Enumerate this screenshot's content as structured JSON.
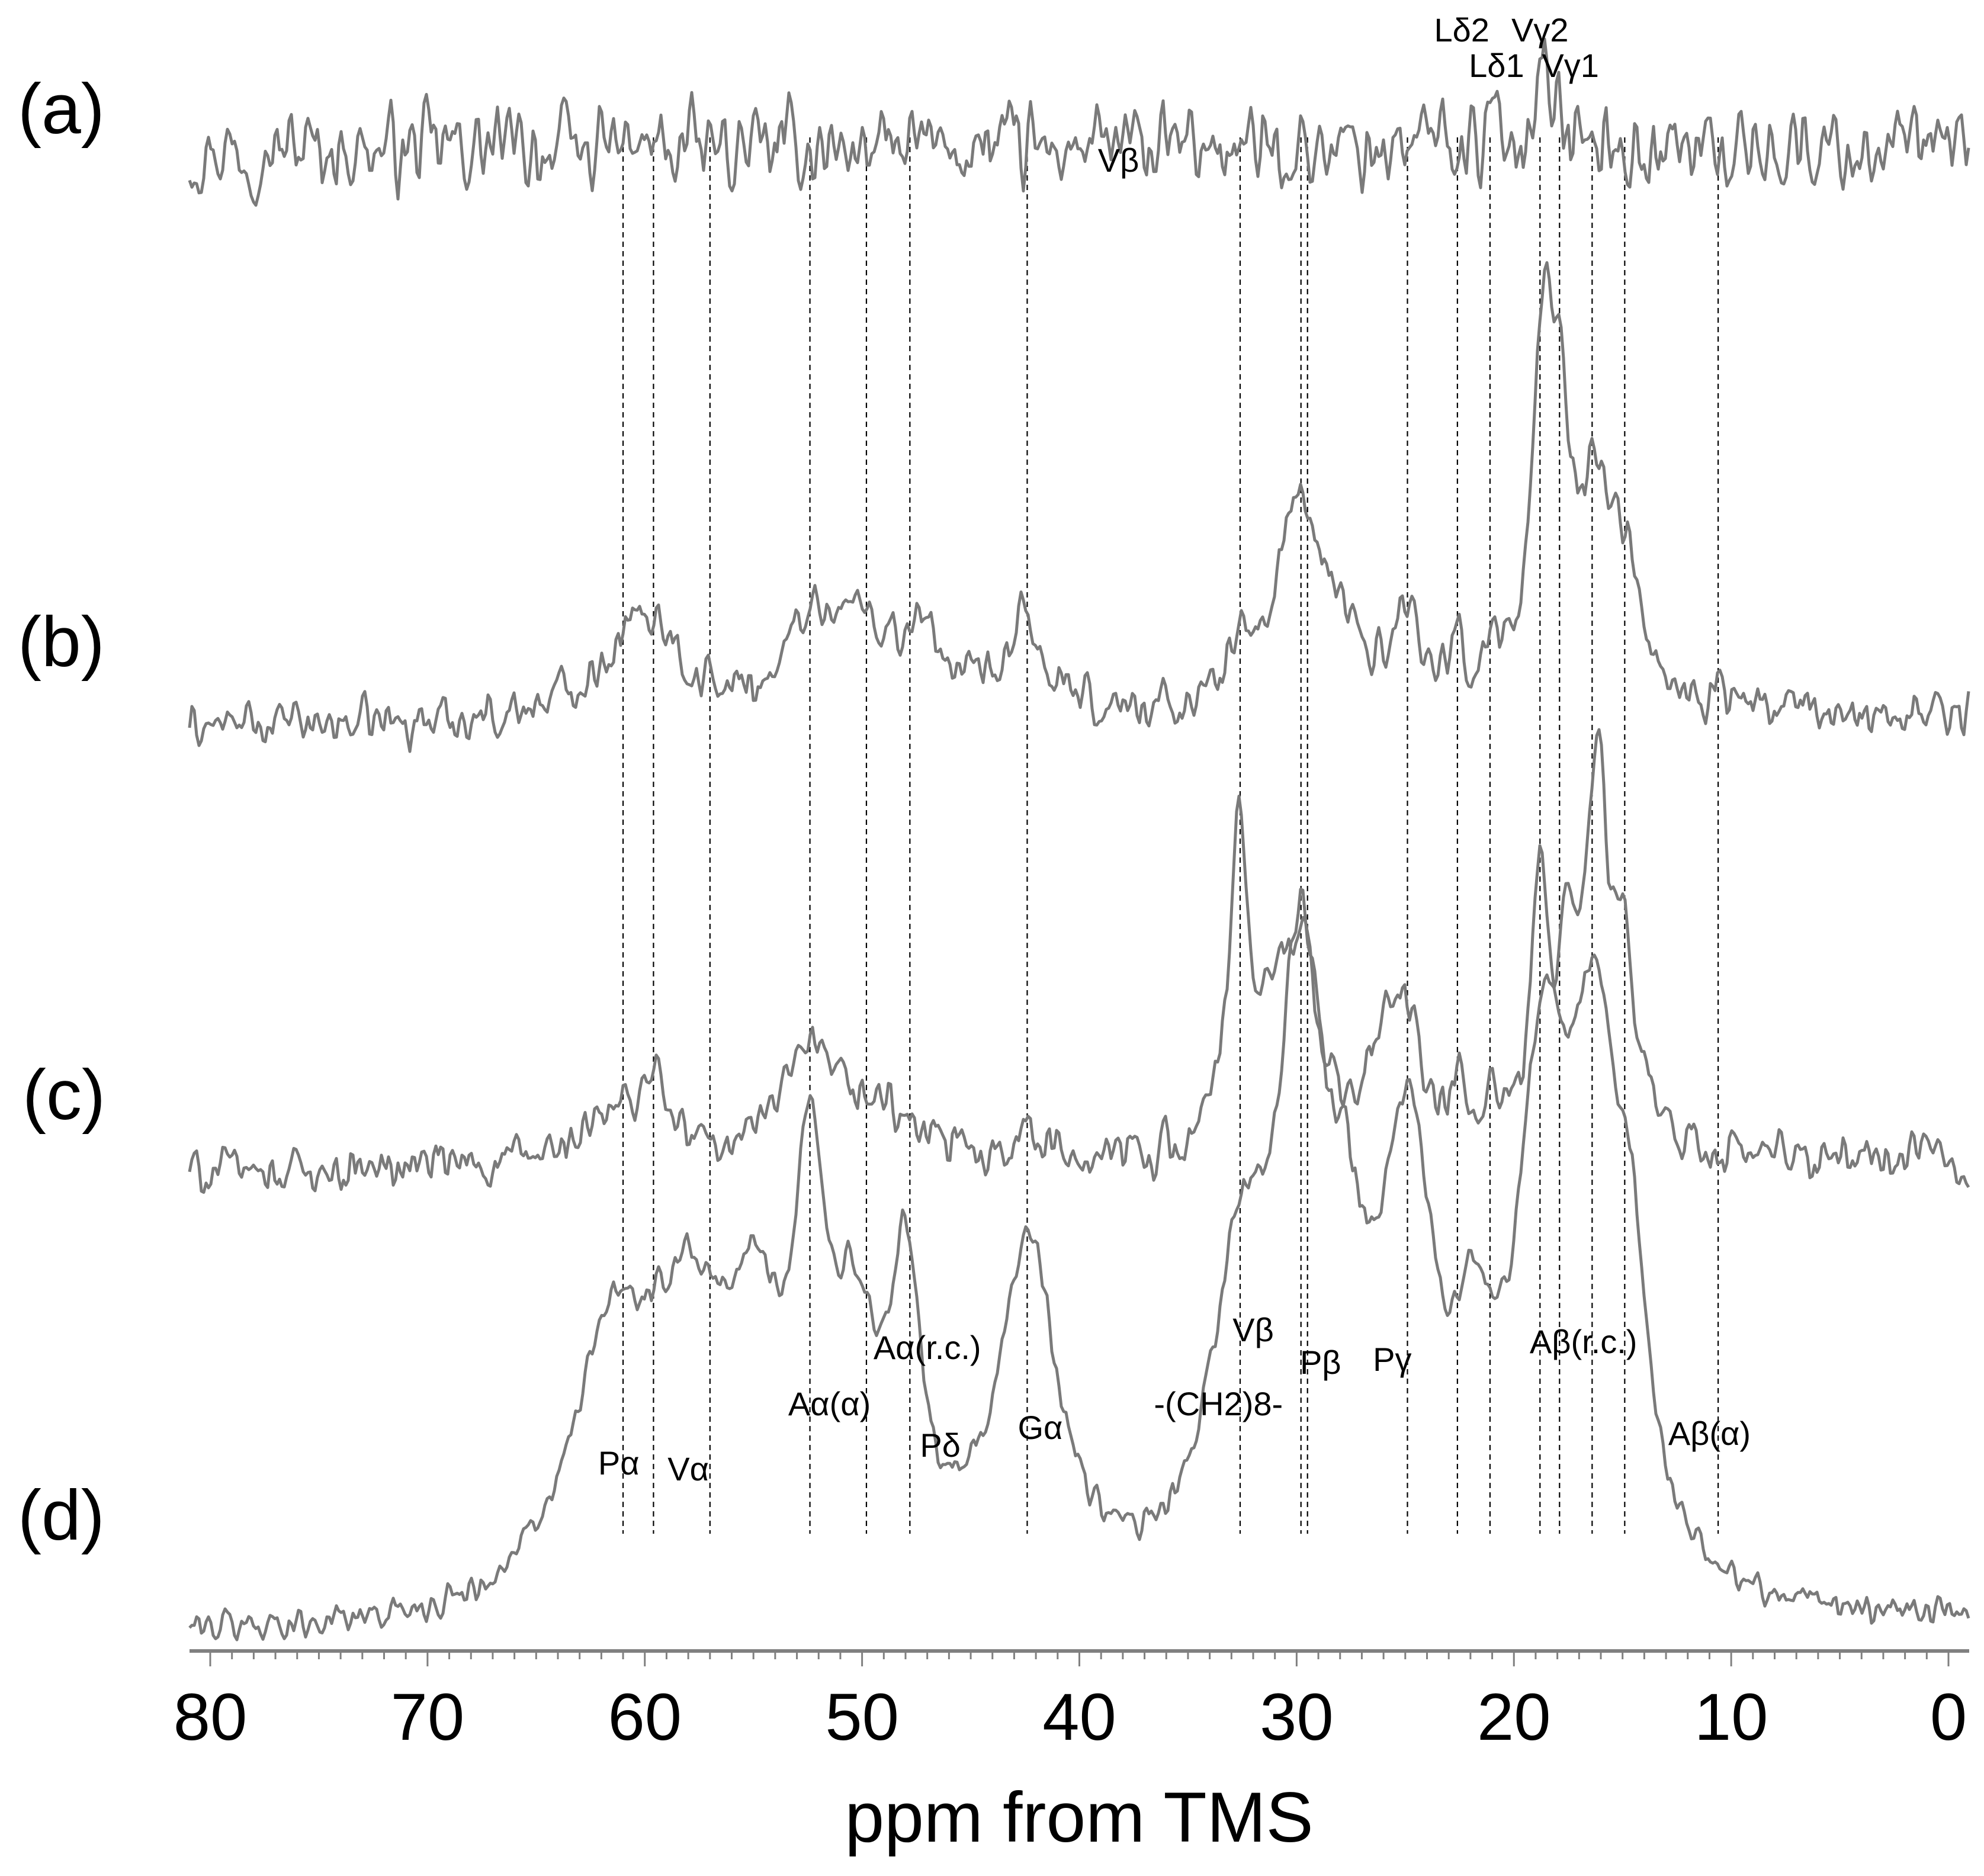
{
  "chart_data": {
    "type": "line",
    "xlabel": "ppm from TMS",
    "xlim": [
      80,
      0
    ],
    "x_reversed": true,
    "xticks": [
      80,
      70,
      60,
      50,
      40,
      30,
      20,
      10,
      0
    ],
    "minor_tick_step": 1,
    "guide_lines_ppm": [
      61.0,
      59.6,
      57.0,
      52.4,
      49.8,
      47.8,
      42.4,
      32.6,
      29.8,
      29.5,
      24.9,
      22.6,
      21.1,
      18.8,
      17.9,
      16.4,
      14.9,
      10.6
    ],
    "series": [
      {
        "name": "(a)",
        "baseline": 0,
        "noise": 0.9,
        "peaks": [
          [
            18.6,
            3.3,
            0.45
          ],
          [
            23.5,
            1.2,
            0.2
          ],
          [
            21.0,
            1.0,
            0.2
          ]
        ],
        "labels": [
          {
            "text": "Lδ2",
            "ppm": 22.4
          },
          {
            "text": "Lδ1",
            "ppm": 20.8
          },
          {
            "text": "Vγ2",
            "ppm": 18.8
          },
          {
            "text": "Vγ1",
            "ppm": 17.4
          },
          {
            "text": "Vβ",
            "ppm": 38.2
          }
        ]
      },
      {
        "name": "(b)",
        "baseline": 0,
        "noise": 0.35,
        "peaks": [
          [
            61.0,
            1.3,
            2.5
          ],
          [
            59.5,
            1.5,
            1.2
          ],
          [
            52.4,
            1.7,
            1.2
          ],
          [
            50.0,
            2.0,
            2.0
          ],
          [
            47.0,
            1.4,
            1.0
          ],
          [
            42.5,
            2.0,
            0.9
          ],
          [
            30.0,
            4.7,
            1.1
          ],
          [
            32.6,
            1.4,
            0.5
          ],
          [
            28.0,
            1.5,
            1.0
          ],
          [
            24.9,
            2.0,
            0.9
          ],
          [
            22.6,
            1.5,
            0.3
          ],
          [
            21.0,
            1.3,
            0.3
          ],
          [
            18.7,
            7.0,
            0.55
          ],
          [
            17.9,
            6.0,
            0.55
          ],
          [
            16.3,
            4.0,
            0.8
          ],
          [
            15.0,
            3.0,
            0.9
          ],
          [
            10.6,
            0.8,
            0.2
          ]
        ],
        "labels": []
      },
      {
        "name": "(c)",
        "baseline": 0,
        "noise": 0.35,
        "peaks": [
          [
            61.0,
            1.2,
            2.0
          ],
          [
            59.6,
            1.4,
            0.5
          ],
          [
            52.4,
            2.3,
            1.8
          ],
          [
            49.0,
            1.0,
            1.5
          ],
          [
            42.5,
            0.6,
            1.0
          ],
          [
            32.7,
            6.5,
            0.5
          ],
          [
            31.0,
            2.5,
            1.2
          ],
          [
            29.8,
            3.8,
            0.9
          ],
          [
            26.0,
            2.2,
            0.8
          ],
          [
            24.9,
            2.5,
            0.8
          ],
          [
            22.6,
            1.4,
            0.3
          ],
          [
            21.1,
            1.2,
            0.3
          ],
          [
            18.8,
            6.0,
            0.45
          ],
          [
            17.5,
            4.2,
            0.5
          ],
          [
            16.2,
            8.0,
            0.55
          ],
          [
            15.0,
            4.0,
            0.7
          ]
        ],
        "labels": []
      },
      {
        "name": "(d)",
        "baseline": 0,
        "noise": 0.18,
        "peaks": [
          [
            61.5,
            4.2,
            2.3
          ],
          [
            58.0,
            4.0,
            2.0
          ],
          [
            55.0,
            3.6,
            1.5
          ],
          [
            52.4,
            6.0,
            0.9
          ],
          [
            50.3,
            3.5,
            1.2
          ],
          [
            48.0,
            4.6,
            0.9
          ],
          [
            42.4,
            5.8,
            1.7
          ],
          [
            32.6,
            4.8,
            1.6
          ],
          [
            29.8,
            9.2,
            1.3
          ],
          [
            27.8,
            3.2,
            1.0
          ],
          [
            24.9,
            7.0,
            1.5
          ],
          [
            21.8,
            2.5,
            0.9
          ],
          [
            18.7,
            7.6,
            1.4
          ],
          [
            16.3,
            7.8,
            1.4
          ],
          [
            14.6,
            3.5,
            0.9
          ]
        ],
        "labels": [
          {
            "text": "Pα",
            "ppm": 61.2
          },
          {
            "text": "Vα",
            "ppm": 58.0
          },
          {
            "text": "Aα(α)",
            "ppm": 51.5
          },
          {
            "text": "Aα(r.c.)",
            "ppm": 47.0
          },
          {
            "text": "Pδ",
            "ppm": 46.4
          },
          {
            "text": "Gα",
            "ppm": 41.8
          },
          {
            "text": "Vβ",
            "ppm": 32.0
          },
          {
            "text": "-(CH2)8-",
            "ppm": 33.6
          },
          {
            "text": "Pβ",
            "ppm": 28.9
          },
          {
            "text": "Pγ",
            "ppm": 25.6
          },
          {
            "text": "Aβ(r.c.)",
            "ppm": 16.8
          },
          {
            "text": "Aβ(α)",
            "ppm": 11.0
          }
        ]
      }
    ]
  }
}
